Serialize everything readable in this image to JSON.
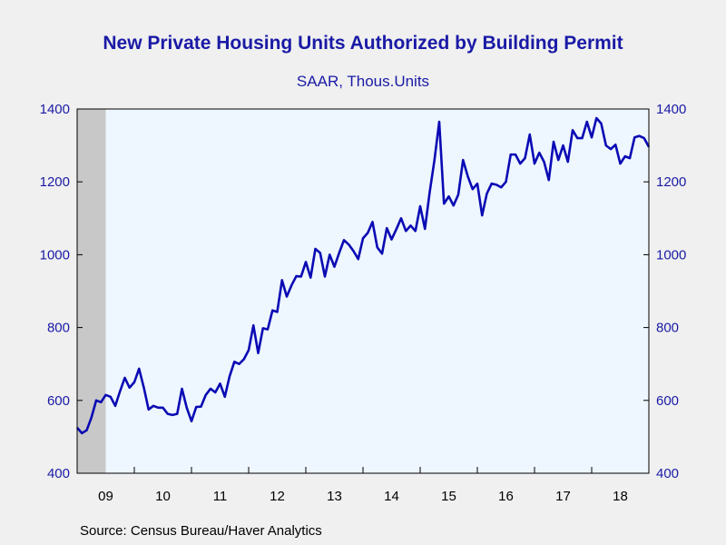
{
  "chart_data": {
    "type": "line",
    "title": "New Private Housing Units Authorized by Building Permit",
    "subtitle": "SAAR, Thous.Units",
    "xlabel": "",
    "ylabel": "",
    "source": "Source:  Census Bureau/Haver Analytics",
    "ylim": [
      400,
      1400
    ],
    "yticks": [
      "400",
      "600",
      "800",
      "1000",
      "1200",
      "1400"
    ],
    "xlim": [
      2009.0,
      2019.0
    ],
    "x_tick_labels": [
      "09",
      "10",
      "11",
      "12",
      "13",
      "14",
      "15",
      "16",
      "17",
      "18"
    ],
    "recession_shading": [
      2009.0,
      2009.5
    ],
    "grid": false,
    "colors": {
      "line": "#0a0ab4",
      "plot_background": "#eef6ff",
      "recession": "#c8c8c8",
      "text": "#1a1aa6"
    },
    "series": [
      {
        "start": "2009-01",
        "frequency": "monthly",
        "values": [
          525,
          510,
          518,
          553,
          600,
          595,
          615,
          610,
          585,
          625,
          662,
          635,
          650,
          687,
          635,
          575,
          585,
          580,
          580,
          563,
          560,
          563,
          632,
          580,
          543,
          582,
          583,
          615,
          632,
          622,
          646,
          610,
          666,
          706,
          700,
          713,
          738,
          806,
          730,
          798,
          795,
          847,
          843,
          930,
          885,
          916,
          941,
          940,
          980,
          937,
          1016,
          1005,
          940,
          1000,
          967,
          1005,
          1040,
          1028,
          1010,
          988,
          1045,
          1060,
          1090,
          1020,
          1003,
          1073,
          1042,
          1070,
          1100,
          1065,
          1080,
          1065,
          1133,
          1071,
          1172,
          1260,
          1365,
          1140,
          1160,
          1135,
          1165,
          1260,
          1215,
          1180,
          1195,
          1108,
          1168,
          1195,
          1192,
          1185,
          1200,
          1275,
          1275,
          1250,
          1265,
          1330,
          1250,
          1280,
          1255,
          1205,
          1310,
          1260,
          1300,
          1255,
          1342,
          1320,
          1320,
          1365,
          1322,
          1375,
          1360,
          1300,
          1290,
          1302,
          1250,
          1270,
          1265,
          1322,
          1326,
          1320,
          1296
        ]
      }
    ]
  }
}
